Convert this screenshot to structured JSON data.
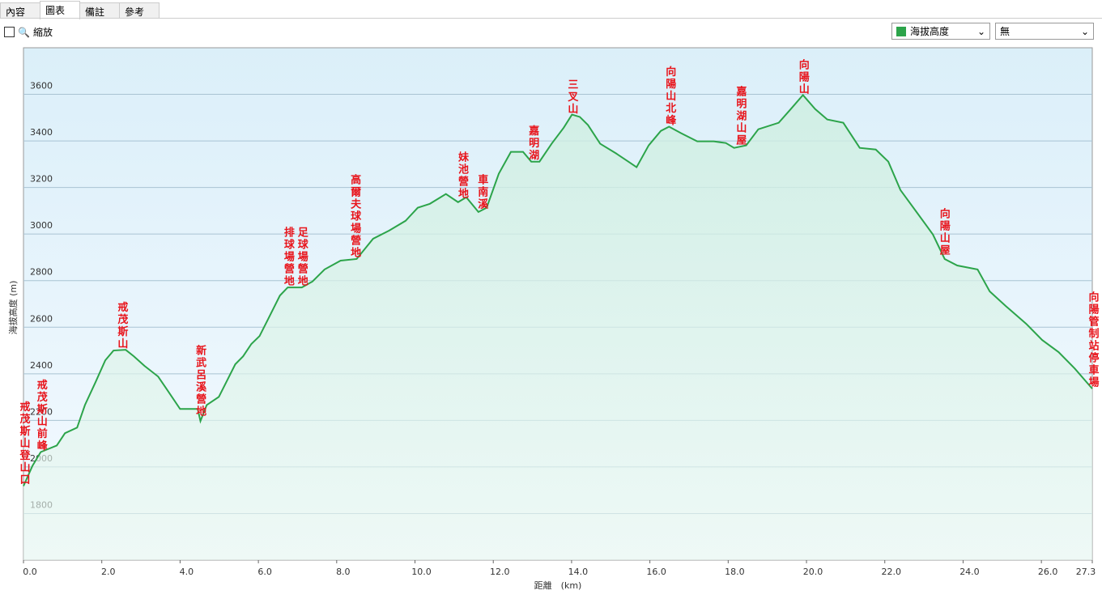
{
  "tabs": [
    "內容",
    "圖表",
    "備註",
    "參考"
  ],
  "toolbar": {
    "zoom": "縮放",
    "series_select": "海拔高度",
    "compare_select": "無"
  },
  "chart_data": {
    "type": "line",
    "color": "#2ca44a",
    "grid": true,
    "xlabel": "距離　(km)",
    "ylabel": "海拔高度 (m)",
    "xlim": [
      0,
      27.3
    ],
    "ylim": [
      1600,
      3800
    ],
    "xticks": [
      {
        "value": 0,
        "label": "0.0"
      },
      {
        "value": 2,
        "label": "2.0"
      },
      {
        "value": 4,
        "label": "4.0"
      },
      {
        "value": 6,
        "label": "6.0"
      },
      {
        "value": 8,
        "label": "8.0"
      },
      {
        "value": 10,
        "label": "10.0"
      },
      {
        "value": 12,
        "label": "12.0"
      },
      {
        "value": 14,
        "label": "14.0"
      },
      {
        "value": 16,
        "label": "16.0"
      },
      {
        "value": 18,
        "label": "18.0"
      },
      {
        "value": 20,
        "label": "20.0"
      },
      {
        "value": 22,
        "label": "22.0"
      },
      {
        "value": 24,
        "label": "24.0"
      },
      {
        "value": 26,
        "label": "26.0"
      },
      {
        "value": 27.3,
        "label": "27.3"
      }
    ],
    "yticks": [
      1800,
      2000,
      2200,
      2400,
      2600,
      2800,
      3000,
      3200,
      3400,
      3600
    ],
    "x": [
      0,
      0.23,
      0.44,
      0.85,
      1.06,
      1.37,
      1.57,
      1.84,
      2.09,
      2.3,
      2.61,
      2.82,
      3.09,
      3.44,
      3.65,
      4.0,
      4.27,
      4.45,
      4.52,
      4.68,
      4.99,
      5.2,
      5.41,
      5.61,
      5.82,
      6.03,
      6.24,
      6.55,
      6.75,
      7.11,
      7.38,
      7.69,
      8.1,
      8.51,
      8.93,
      9.34,
      9.76,
      10.07,
      10.38,
      10.79,
      11.1,
      11.31,
      11.62,
      11.83,
      12.14,
      12.45,
      12.76,
      12.97,
      13.18,
      13.49,
      13.8,
      14.01,
      14.21,
      14.42,
      14.73,
      15.14,
      15.45,
      15.66,
      15.97,
      16.28,
      16.49,
      16.8,
      17.21,
      17.63,
      17.94,
      18.15,
      18.46,
      18.77,
      19.29,
      19.6,
      19.91,
      20.22,
      20.53,
      20.94,
      21.36,
      21.77,
      22.09,
      22.4,
      22.81,
      23.23,
      23.53,
      23.85,
      24.37,
      24.68,
      25.09,
      25.61,
      26.02,
      26.44,
      26.85,
      27.3
    ],
    "values": [
      1918,
      2005,
      2064,
      2092,
      2145,
      2169,
      2266,
      2364,
      2458,
      2500,
      2503,
      2475,
      2434,
      2388,
      2336,
      2249,
      2249,
      2249,
      2197,
      2266,
      2301,
      2371,
      2441,
      2475,
      2528,
      2562,
      2632,
      2736,
      2771,
      2771,
      2796,
      2848,
      2886,
      2893,
      2980,
      3015,
      3057,
      3113,
      3130,
      3172,
      3137,
      3158,
      3095,
      3113,
      3259,
      3353,
      3353,
      3311,
      3311,
      3388,
      3457,
      3513,
      3503,
      3468,
      3388,
      3346,
      3311,
      3287,
      3381,
      3443,
      3461,
      3433,
      3398,
      3398,
      3391,
      3370,
      3381,
      3450,
      3478,
      3537,
      3597,
      3537,
      3492,
      3478,
      3370,
      3363,
      3311,
      3189,
      3095,
      2998,
      2893,
      2865,
      2848,
      2754,
      2691,
      2615,
      2545,
      2493,
      2423,
      2336
    ],
    "waypoints": [
      {
        "label": "戒茂斯山登山口",
        "x": 0
      },
      {
        "label": "戒茂斯山前峰",
        "x": 0.44
      },
      {
        "label": "戒茂斯山",
        "x": 2.5
      },
      {
        "label": "新武呂溪營地",
        "x": 4.5
      },
      {
        "label": "排球場營地",
        "x": 6.75
      },
      {
        "label": "足球場營地",
        "x": 7.1
      },
      {
        "label": "高爾夫球場營地",
        "x": 8.45
      },
      {
        "label": "妹池營地",
        "x": 11.2
      },
      {
        "label": "車南溪",
        "x": 11.7
      },
      {
        "label": "嘉明湖",
        "x": 13.0
      },
      {
        "label": "三叉山",
        "x": 14.0
      },
      {
        "label": "向陽山北峰",
        "x": 16.5
      },
      {
        "label": "嘉明湖山屋",
        "x": 18.3
      },
      {
        "label": "向陽山",
        "x": 19.9
      },
      {
        "label": "向陽山屋",
        "x": 23.5
      },
      {
        "label": "向陽管制站停車場",
        "x": 27.3
      }
    ]
  }
}
